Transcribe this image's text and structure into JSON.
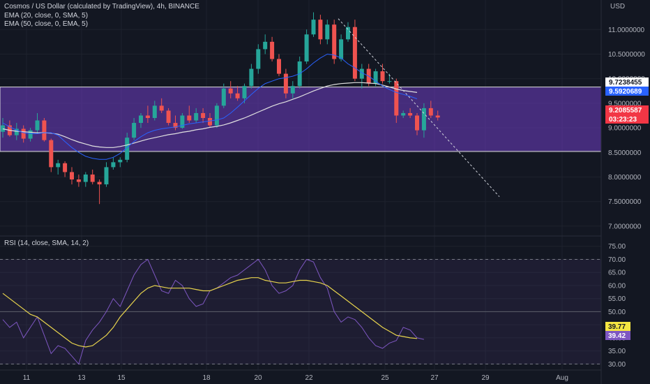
{
  "header": {
    "title": "Cosmos / US Dollar (calculated by TradingView), 4h, BINANCE",
    "ema20": "EMA (20, close, 0, SMA, 5)",
    "ema50": "EMA (50, close, 0, EMA, 5)",
    "rsi": "RSI (14, close, SMA, 14, 2)",
    "currency": "USD"
  },
  "colors": {
    "background": "#131722",
    "zone": "#673ab7",
    "up": "#26a69a",
    "down": "#ef5350",
    "ema20": "#2962ff",
    "ema50": "#e0e0e0",
    "rsi": "#7e57c2",
    "rsi_ma": "#e8d44d"
  },
  "price_axis": {
    "ticks": [
      "11.0000000",
      "10.5000000",
      "10.0000000",
      "9.5000000",
      "9.0000000",
      "8.5000000",
      "8.0000000",
      "7.5000000",
      "7.0000000"
    ],
    "ema50_tag": "9.7238455",
    "ema20_tag": "9.5920689",
    "last_price_tag": "9.2085587",
    "countdown_tag": "03:23:23"
  },
  "rsi_axis": {
    "ticks": [
      "75.00",
      "70.00",
      "65.00",
      "60.00",
      "55.00",
      "50.00",
      "45.00",
      "40.00",
      "35.00",
      "30.00"
    ],
    "ma_tag": "39.77",
    "rsi_tag": "39.42"
  },
  "x_axis": {
    "labels": [
      "11",
      "13",
      "15",
      "18",
      "20",
      "22",
      "25",
      "27",
      "29",
      "Aug"
    ]
  },
  "chart_data": {
    "type": "candlestick",
    "interval": "4h",
    "symbol": "ATOM/USD",
    "price_range": [
      6.8,
      11.6
    ],
    "zone": {
      "top": 9.83,
      "bottom": 8.52
    },
    "trendline": {
      "from": 11.22,
      "to": 7.6
    },
    "series": [
      {
        "name": "EMA (20, close, 0, SMA, 5)",
        "values": [
          9.1,
          9.02,
          8.95,
          8.9,
          8.88,
          8.88,
          8.9,
          8.9,
          8.85,
          8.72,
          8.6,
          8.5,
          8.42,
          8.38,
          8.36,
          8.36,
          8.4,
          8.48,
          8.6,
          8.72,
          8.82,
          8.9,
          8.95,
          8.98,
          9.0,
          9.02,
          9.05,
          9.08,
          9.1,
          9.12,
          9.14,
          9.16,
          9.2,
          9.3,
          9.42,
          9.55,
          9.68,
          9.8,
          9.9,
          9.95,
          10.0,
          10.02,
          10.05,
          10.1,
          10.2,
          10.32,
          10.42,
          10.5,
          10.48,
          10.42,
          10.3,
          10.22,
          10.12,
          10.05,
          9.95,
          9.85,
          9.78,
          9.72,
          9.68,
          9.64,
          9.59
        ]
      },
      {
        "name": "EMA (50, close, 0, EMA, 5)",
        "values": [
          8.98,
          8.95,
          8.93,
          8.92,
          8.91,
          8.9,
          8.9,
          8.89,
          8.87,
          8.82,
          8.76,
          8.71,
          8.67,
          8.63,
          8.61,
          8.6,
          8.6,
          8.62,
          8.65,
          8.69,
          8.73,
          8.77,
          8.8,
          8.83,
          8.86,
          8.88,
          8.91,
          8.93,
          8.96,
          8.98,
          9.01,
          9.03,
          9.06,
          9.1,
          9.15,
          9.2,
          9.26,
          9.32,
          9.38,
          9.44,
          9.49,
          9.53,
          9.58,
          9.63,
          9.69,
          9.75,
          9.8,
          9.85,
          9.88,
          9.9,
          9.91,
          9.92,
          9.92,
          9.91,
          9.9,
          9.87,
          9.83,
          9.79,
          9.76,
          9.74,
          9.72
        ]
      },
      {
        "name": "RSI",
        "values": [
          47,
          44,
          46,
          40,
          44,
          48,
          41,
          34,
          37,
          36,
          33,
          30,
          39,
          43,
          46,
          50,
          55,
          52,
          58,
          64,
          68,
          70,
          64,
          58,
          57,
          62,
          60,
          55,
          52,
          53,
          58,
          59,
          61,
          63,
          64,
          66,
          68,
          70,
          66,
          60,
          57,
          58,
          60,
          66,
          70,
          69,
          63,
          59,
          50,
          46,
          48,
          47,
          44,
          40,
          37,
          36,
          38,
          39,
          44,
          43,
          40,
          39.42
        ]
      },
      {
        "name": "RSI-based MA",
        "values": [
          57,
          55,
          53,
          51,
          49,
          48,
          46,
          44,
          42,
          40,
          38,
          37,
          36.5,
          37,
          39,
          41,
          44,
          48,
          51,
          54,
          57,
          59,
          60,
          59.5,
          59,
          59,
          59,
          59,
          58.5,
          58,
          58,
          59,
          60,
          61,
          62,
          62.5,
          63,
          63,
          62,
          61.5,
          61,
          61,
          61.5,
          62,
          62,
          61.5,
          61,
          60,
          58,
          56,
          54,
          52,
          50,
          48,
          46,
          44,
          42.5,
          41,
          40.5,
          40,
          39.77
        ]
      }
    ],
    "candles": [
      {
        "o": 8.92,
        "h": 9.2,
        "l": 8.8,
        "c": 9.05
      },
      {
        "o": 9.05,
        "h": 9.15,
        "l": 8.82,
        "c": 8.85
      },
      {
        "o": 8.85,
        "h": 9.1,
        "l": 8.75,
        "c": 8.98
      },
      {
        "o": 8.98,
        "h": 9.05,
        "l": 8.7,
        "c": 8.78
      },
      {
        "o": 8.78,
        "h": 9.0,
        "l": 8.72,
        "c": 8.95
      },
      {
        "o": 8.95,
        "h": 9.3,
        "l": 8.88,
        "c": 9.15
      },
      {
        "o": 9.15,
        "h": 9.2,
        "l": 8.72,
        "c": 8.75
      },
      {
        "o": 8.75,
        "h": 8.78,
        "l": 8.1,
        "c": 8.2
      },
      {
        "o": 8.2,
        "h": 8.35,
        "l": 8.05,
        "c": 8.28
      },
      {
        "o": 8.28,
        "h": 8.32,
        "l": 8.0,
        "c": 8.1
      },
      {
        "o": 8.1,
        "h": 8.2,
        "l": 7.85,
        "c": 7.95
      },
      {
        "o": 7.95,
        "h": 8.05,
        "l": 7.8,
        "c": 7.9
      },
      {
        "o": 7.9,
        "h": 8.1,
        "l": 7.8,
        "c": 8.05
      },
      {
        "o": 8.05,
        "h": 8.15,
        "l": 7.85,
        "c": 7.9
      },
      {
        "o": 7.9,
        "h": 7.95,
        "l": 7.45,
        "c": 7.85
      },
      {
        "o": 7.85,
        "h": 8.3,
        "l": 7.8,
        "c": 8.2
      },
      {
        "o": 8.2,
        "h": 8.4,
        "l": 8.15,
        "c": 8.3
      },
      {
        "o": 8.3,
        "h": 8.4,
        "l": 8.2,
        "c": 8.35
      },
      {
        "o": 8.35,
        "h": 8.9,
        "l": 8.3,
        "c": 8.8
      },
      {
        "o": 8.8,
        "h": 9.2,
        "l": 8.75,
        "c": 9.1
      },
      {
        "o": 9.1,
        "h": 9.3,
        "l": 9.0,
        "c": 9.25
      },
      {
        "o": 9.25,
        "h": 9.45,
        "l": 9.1,
        "c": 9.2
      },
      {
        "o": 9.2,
        "h": 9.55,
        "l": 9.15,
        "c": 9.45
      },
      {
        "o": 9.45,
        "h": 9.6,
        "l": 9.3,
        "c": 9.35
      },
      {
        "o": 9.35,
        "h": 9.4,
        "l": 9.05,
        "c": 9.1
      },
      {
        "o": 9.1,
        "h": 9.25,
        "l": 8.95,
        "c": 9.0
      },
      {
        "o": 9.0,
        "h": 9.3,
        "l": 8.98,
        "c": 9.25
      },
      {
        "o": 9.25,
        "h": 9.45,
        "l": 9.1,
        "c": 9.15
      },
      {
        "o": 9.15,
        "h": 9.4,
        "l": 9.1,
        "c": 9.3
      },
      {
        "o": 9.3,
        "h": 9.4,
        "l": 9.1,
        "c": 9.2
      },
      {
        "o": 9.2,
        "h": 9.3,
        "l": 9.0,
        "c": 9.05
      },
      {
        "o": 9.05,
        "h": 9.5,
        "l": 9.0,
        "c": 9.45
      },
      {
        "o": 9.45,
        "h": 9.9,
        "l": 9.4,
        "c": 9.8
      },
      {
        "o": 9.8,
        "h": 9.95,
        "l": 9.6,
        "c": 9.7
      },
      {
        "o": 9.7,
        "h": 9.85,
        "l": 9.55,
        "c": 9.6
      },
      {
        "o": 9.6,
        "h": 9.9,
        "l": 9.5,
        "c": 9.85
      },
      {
        "o": 9.85,
        "h": 10.3,
        "l": 9.8,
        "c": 10.2
      },
      {
        "o": 10.2,
        "h": 10.7,
        "l": 10.1,
        "c": 10.6
      },
      {
        "o": 10.6,
        "h": 10.9,
        "l": 10.5,
        "c": 10.75
      },
      {
        "o": 10.75,
        "h": 10.85,
        "l": 10.35,
        "c": 10.4
      },
      {
        "o": 10.4,
        "h": 10.5,
        "l": 10.05,
        "c": 10.1
      },
      {
        "o": 10.1,
        "h": 10.2,
        "l": 9.6,
        "c": 9.7
      },
      {
        "o": 9.7,
        "h": 9.95,
        "l": 9.6,
        "c": 9.85
      },
      {
        "o": 9.85,
        "h": 10.45,
        "l": 9.8,
        "c": 10.35
      },
      {
        "o": 10.35,
        "h": 11.0,
        "l": 10.3,
        "c": 10.9
      },
      {
        "o": 10.9,
        "h": 11.35,
        "l": 10.85,
        "c": 11.2
      },
      {
        "o": 11.2,
        "h": 11.3,
        "l": 10.7,
        "c": 10.8
      },
      {
        "o": 10.8,
        "h": 11.2,
        "l": 10.7,
        "c": 11.1
      },
      {
        "o": 11.1,
        "h": 11.2,
        "l": 10.3,
        "c": 10.4
      },
      {
        "o": 10.4,
        "h": 10.9,
        "l": 10.35,
        "c": 10.8
      },
      {
        "o": 10.8,
        "h": 11.15,
        "l": 10.75,
        "c": 11.05
      },
      {
        "o": 11.05,
        "h": 11.2,
        "l": 9.95,
        "c": 10.0
      },
      {
        "o": 10.0,
        "h": 10.3,
        "l": 9.8,
        "c": 10.2
      },
      {
        "o": 10.2,
        "h": 10.3,
        "l": 9.85,
        "c": 9.9
      },
      {
        "o": 9.9,
        "h": 10.2,
        "l": 9.85,
        "c": 10.15
      },
      {
        "o": 10.15,
        "h": 10.3,
        "l": 9.9,
        "c": 9.95
      },
      {
        "o": 9.95,
        "h": 10.1,
        "l": 9.9,
        "c": 9.95
      },
      {
        "o": 9.95,
        "h": 10.0,
        "l": 9.1,
        "c": 9.25
      },
      {
        "o": 9.25,
        "h": 9.35,
        "l": 9.2,
        "c": 9.3
      },
      {
        "o": 9.3,
        "h": 9.4,
        "l": 9.2,
        "c": 9.25
      },
      {
        "o": 9.25,
        "h": 9.3,
        "l": 8.85,
        "c": 8.95
      },
      {
        "o": 8.95,
        "h": 9.5,
        "l": 8.8,
        "c": 9.4
      },
      {
        "o": 9.4,
        "h": 9.55,
        "l": 9.2,
        "c": 9.25
      },
      {
        "o": 9.25,
        "h": 9.35,
        "l": 9.15,
        "c": 9.21
      }
    ]
  }
}
